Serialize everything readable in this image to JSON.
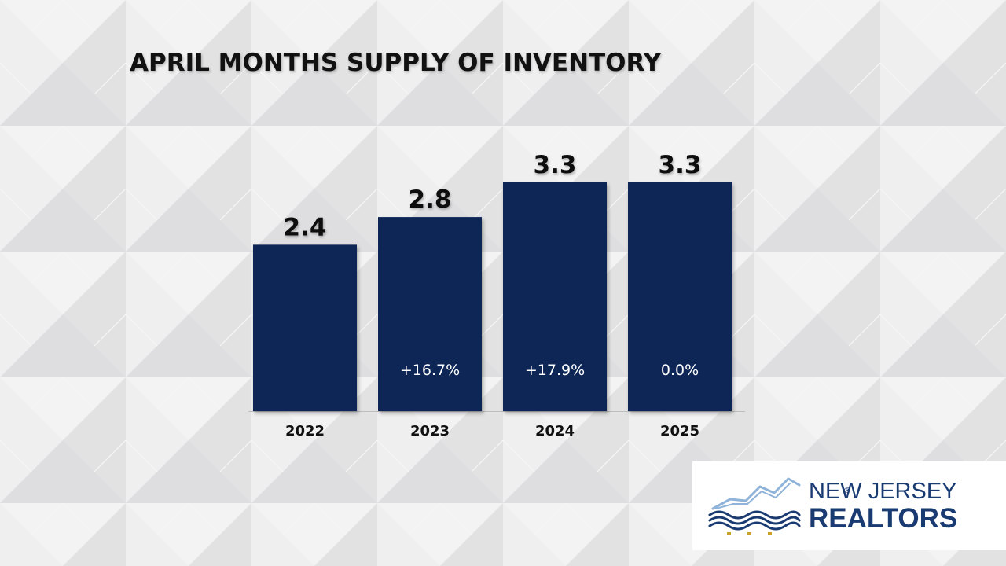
{
  "title": "APRIL MONTHS SUPPLY OF INVENTORY",
  "colors": {
    "bar": "#0d2557",
    "background": "#e9e9ea",
    "logo_dark": "#1a3a72",
    "logo_light": "#8fb3d9",
    "logo_gold": "#c9a227"
  },
  "chart_data": {
    "type": "bar",
    "title": "APRIL MONTHS SUPPLY OF INVENTORY",
    "categories": [
      "2022",
      "2023",
      "2024",
      "2025"
    ],
    "values": [
      2.4,
      2.8,
      3.3,
      3.3
    ],
    "value_labels": [
      "2.4",
      "2.8",
      "3.3",
      "3.3"
    ],
    "change_labels": [
      "",
      "+16.7%",
      "+17.9%",
      "0.0%"
    ],
    "xlabel": "",
    "ylabel": "",
    "ylim": [
      0,
      3.3
    ],
    "grid": false,
    "legend": "none"
  },
  "logo": {
    "line1": "NEW JERSEY",
    "line2": "REALTORS",
    "registered": "®",
    "icon": "skyline-waves-icon"
  }
}
